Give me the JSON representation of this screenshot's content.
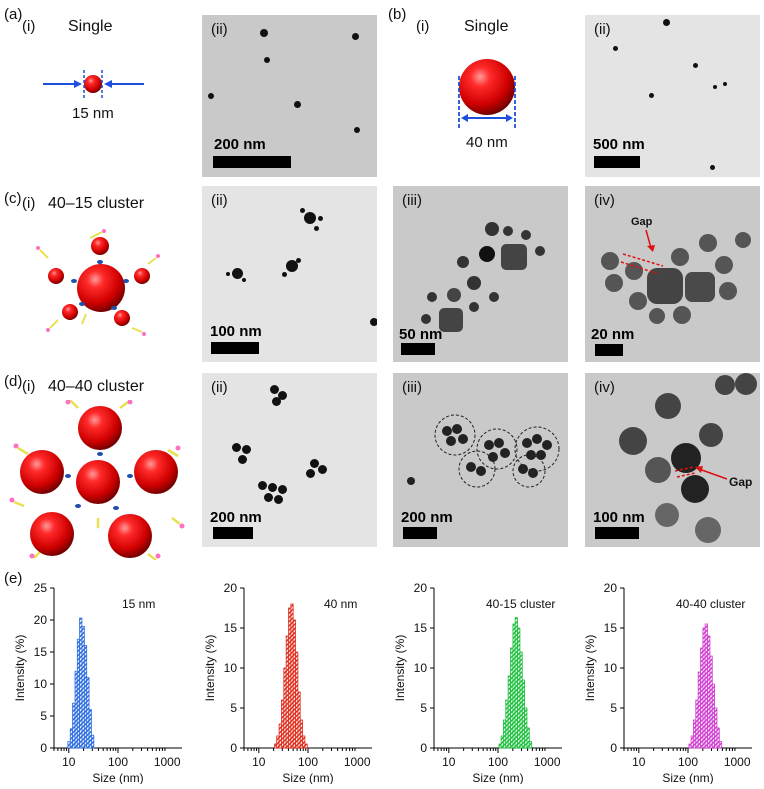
{
  "row_a": {
    "panel_label": "(a)",
    "sub_i": "(i)",
    "title": "Single",
    "size_label": "15 nm",
    "tem": {
      "sub": "(ii)",
      "scale": "200 nm"
    }
  },
  "row_b": {
    "panel_label": "(b)",
    "sub_i": "(i)",
    "title": "Single",
    "size_label": "40 nm",
    "tem": {
      "sub": "(ii)",
      "scale": "500 nm"
    }
  },
  "row_c": {
    "panel_label": "(c)",
    "sub_i": "(i)",
    "title": "40–15 cluster",
    "tem": [
      {
        "sub": "(ii)",
        "scale": "100 nm"
      },
      {
        "sub": "(iii)",
        "scale": "50 nm"
      },
      {
        "sub": "(iv)",
        "scale": "20 nm",
        "annotation": "Gap"
      }
    ]
  },
  "row_d": {
    "panel_label": "(d)",
    "sub_i": "(i)",
    "title": "40–40 cluster",
    "tem": [
      {
        "sub": "(ii)",
        "scale": "200 nm"
      },
      {
        "sub": "(iii)",
        "scale": "200 nm"
      },
      {
        "sub": "(iv)",
        "scale": "100 nm",
        "annotation": "Gap"
      }
    ]
  },
  "row_e": {
    "panel_label": "(e)"
  },
  "colors": {
    "particle_red": "#e00000",
    "arrow_blue": "#1f4fe0",
    "annotation_red": "#e01010"
  },
  "chart_data": [
    {
      "type": "bar",
      "legend": "15 nm",
      "color": "#2f6fe0",
      "xlabel": "Size (nm)",
      "ylabel": "Intensity (%)",
      "xscale": "log",
      "xlim": [
        5,
        2000
      ],
      "ylim": [
        0,
        25
      ],
      "xticks": [
        "10",
        "100",
        "1000"
      ],
      "yticks": [
        "0",
        "5",
        "10",
        "15",
        "20",
        "25"
      ],
      "x": [
        10.1,
        11.3,
        12.6,
        14.1,
        15.7,
        17.5,
        19.6,
        21.9,
        24.4,
        27.3,
        30.5
      ],
      "values": [
        1,
        3,
        7,
        12,
        17,
        20.3,
        19,
        16,
        11,
        6,
        2
      ]
    },
    {
      "type": "bar",
      "legend": "40 nm",
      "color": "#e03020",
      "xlabel": "Size (nm)",
      "ylabel": "Intensity (%)",
      "xscale": "log",
      "xlim": [
        5,
        2000
      ],
      "ylim": [
        0,
        20
      ],
      "xticks": [
        "10",
        "100",
        "1000"
      ],
      "yticks": [
        "0",
        "5",
        "10",
        "15",
        "20"
      ],
      "x": [
        22,
        24.4,
        27.3,
        30.5,
        34,
        38,
        42.4,
        47.3,
        52.8,
        59,
        65.8,
        73.5,
        82,
        91.5
      ],
      "values": [
        0.5,
        1.5,
        3,
        6,
        10,
        14,
        17.5,
        18,
        16,
        12,
        7,
        3.5,
        1.5,
        0.5
      ]
    },
    {
      "type": "bar",
      "legend": "40-15 cluster",
      "color": "#20c040",
      "xlabel": "Size (nm)",
      "ylabel": "Intensity (%)",
      "xscale": "log",
      "xlim": [
        5,
        2000
      ],
      "ylim": [
        0,
        20
      ],
      "xticks": [
        "10",
        "100",
        "1000"
      ],
      "yticks": [
        "0",
        "5",
        "10",
        "15",
        "20"
      ],
      "x": [
        110,
        122,
        136,
        152,
        170,
        190,
        212,
        236,
        264,
        295,
        329,
        367,
        410,
        458
      ],
      "values": [
        0.5,
        1.5,
        3.5,
        6,
        9,
        12.5,
        15.5,
        16.3,
        15,
        12,
        8.5,
        5,
        2.5,
        0.8
      ]
    },
    {
      "type": "bar",
      "legend": "40-40 cluster",
      "color": "#d040d0",
      "xlabel": "Size (nm)",
      "ylabel": "Intensity (%)",
      "xscale": "log",
      "xlim": [
        5,
        2000
      ],
      "ylim": [
        0,
        20
      ],
      "xticks": [
        "10",
        "100",
        "1000"
      ],
      "yticks": [
        "0",
        "5",
        "10",
        "15",
        "20"
      ],
      "x": [
        110,
        122,
        136,
        152,
        170,
        190,
        212,
        236,
        264,
        295,
        329,
        367,
        410,
        458
      ],
      "values": [
        0.5,
        1.5,
        3.5,
        6,
        9.5,
        12.5,
        15,
        15.5,
        14,
        11.5,
        8,
        5,
        2.5,
        0.8
      ]
    }
  ]
}
